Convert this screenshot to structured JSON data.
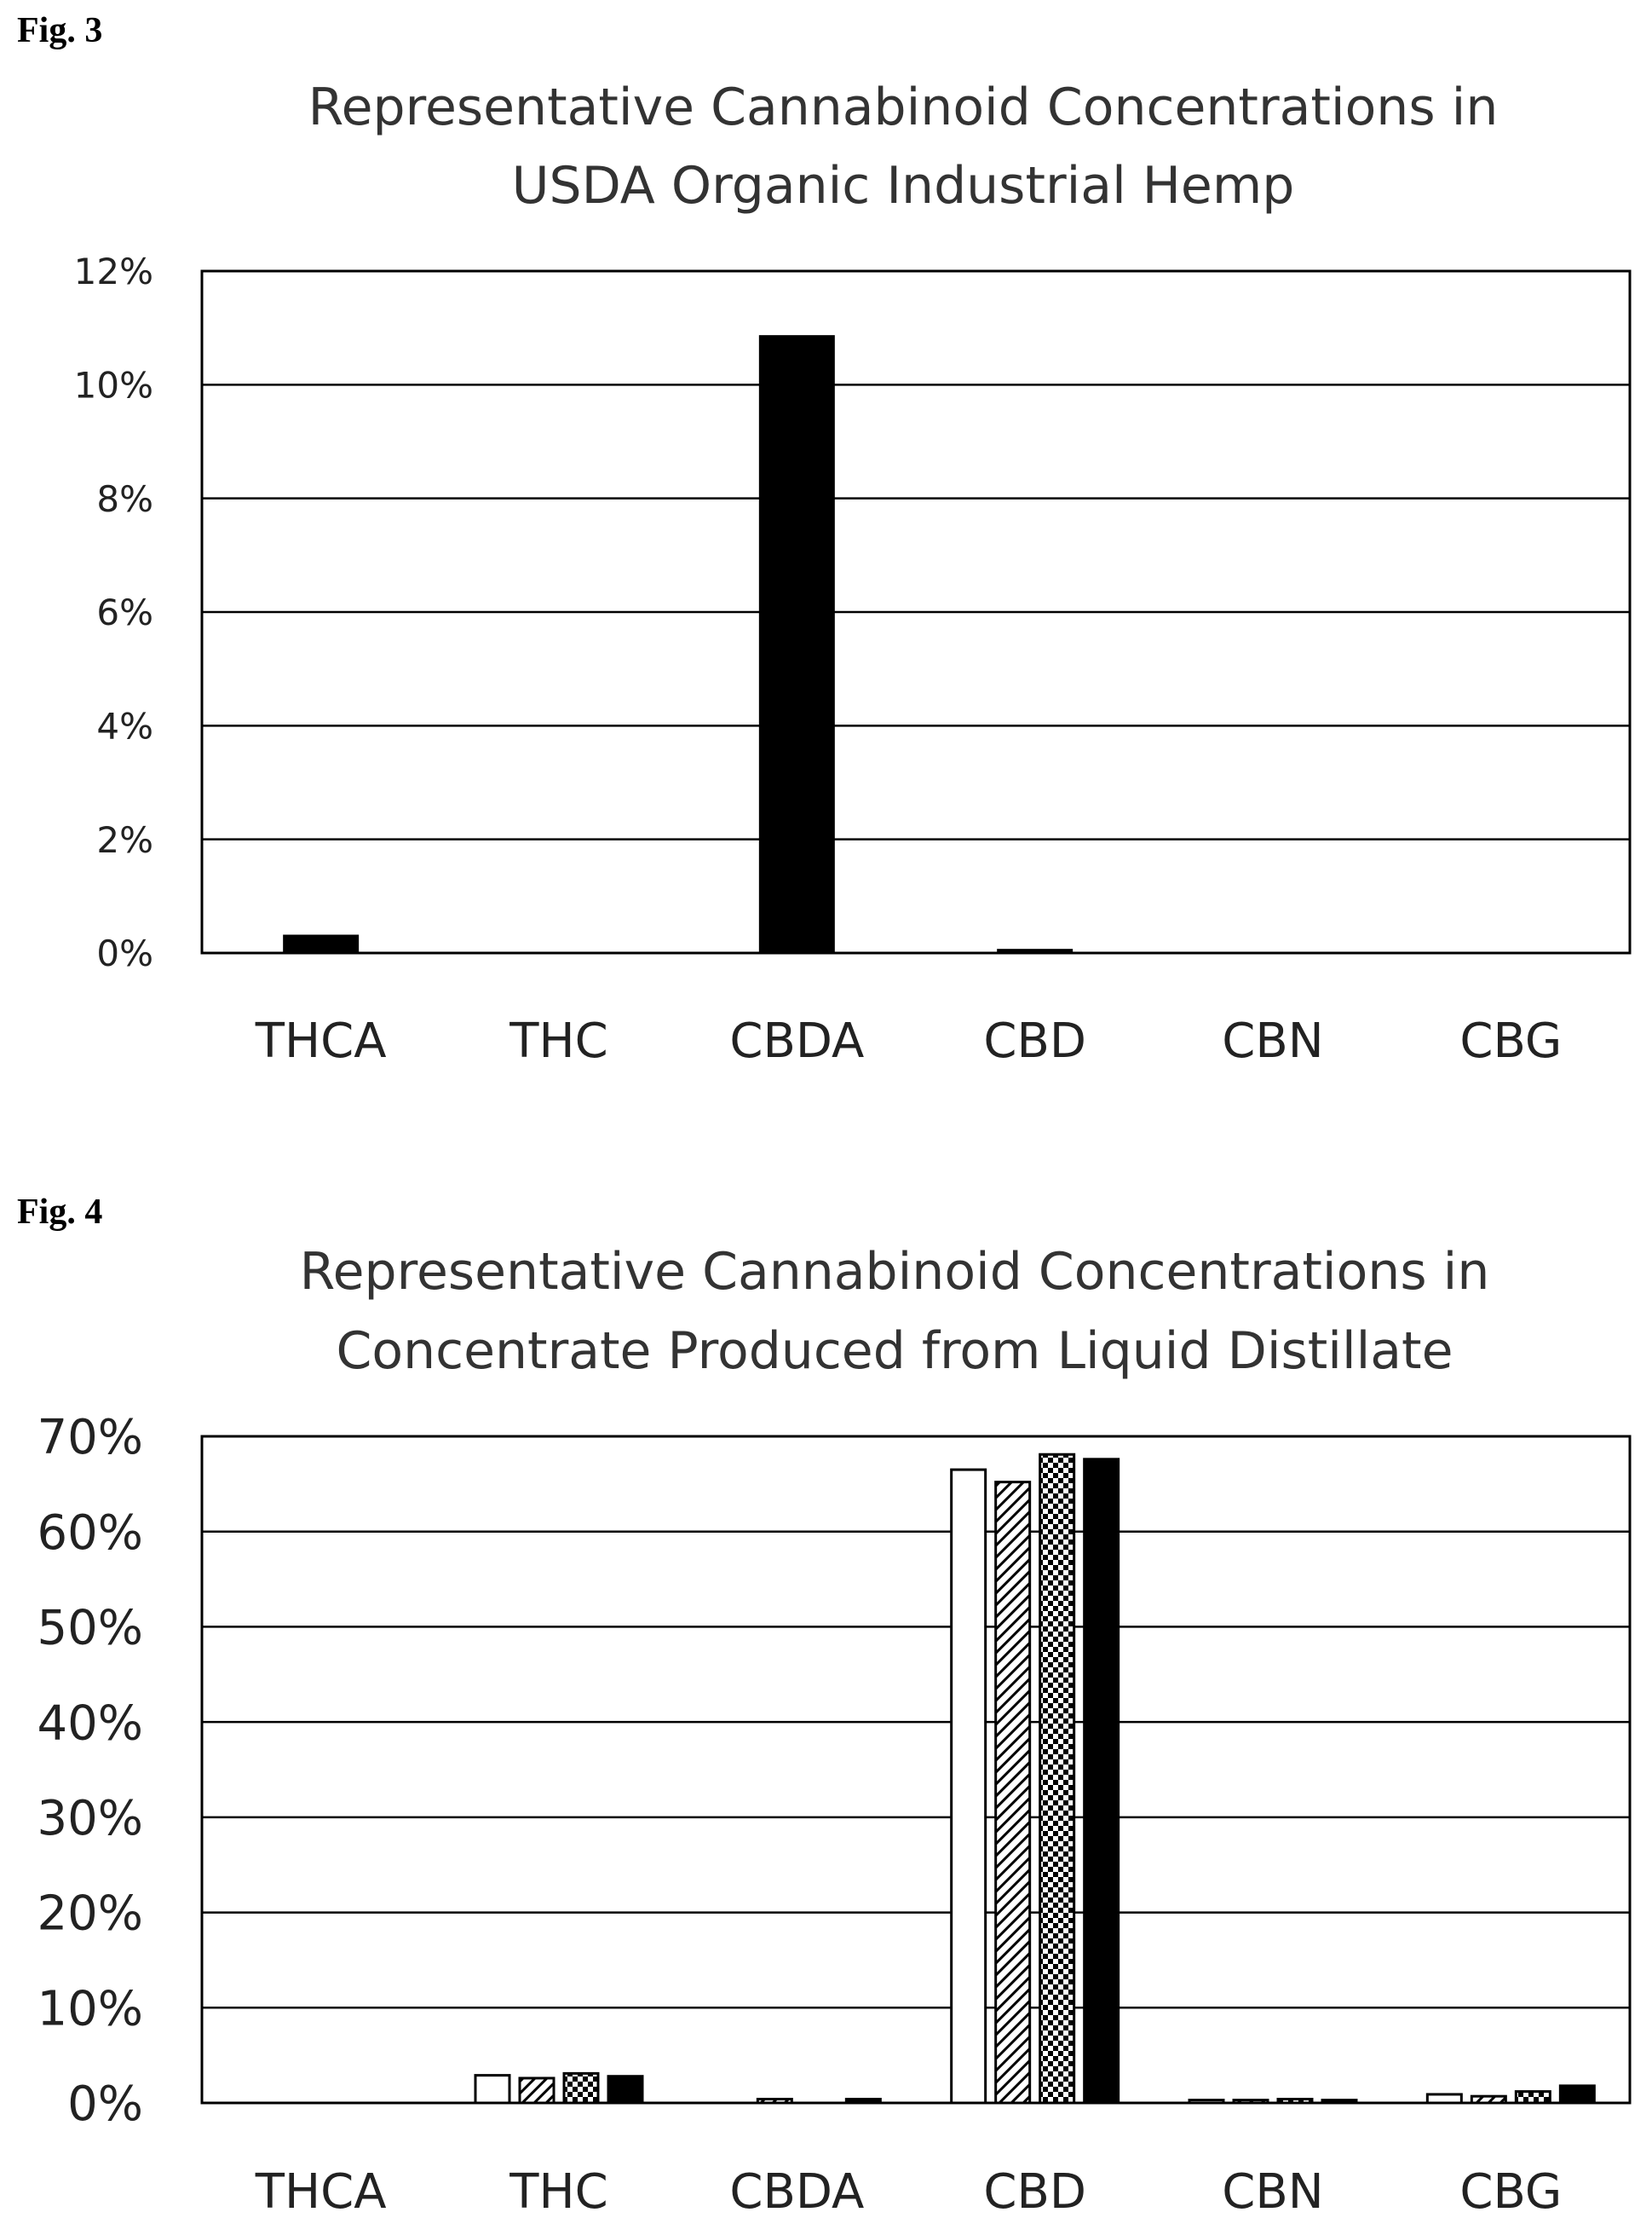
{
  "figures": {
    "fig3": {
      "label": "Fig. 3"
    },
    "fig4": {
      "label": "Fig. 4"
    }
  },
  "chart_data": [
    {
      "type": "bar",
      "title": "Representative Cannabinoid Concentrations in USDA Organic Industrial Hemp",
      "title_lines": [
        "Representative Cannabinoid Concentrations in",
        "USDA Organic Industrial Hemp"
      ],
      "categories": [
        "THCA",
        "THC",
        "CBDA",
        "CBD",
        "CBN",
        "CBG"
      ],
      "series": [
        {
          "values": [
            0.3,
            0.0,
            10.85,
            0.05,
            0.0,
            0.0
          ],
          "fill": "solid"
        }
      ],
      "ylim": [
        0,
        12
      ],
      "yticks": [
        0,
        2,
        4,
        6,
        8,
        10,
        12
      ],
      "ytick_labels": [
        "0%",
        "2%",
        "4%",
        "6%",
        "8%",
        "10%",
        "12%"
      ],
      "unit": "%",
      "grid": true,
      "xlabel": "",
      "ylabel": ""
    },
    {
      "type": "bar",
      "title": "Representative Cannabinoid Concentrations in Concentrate Produced from Liquid Distillate",
      "title_lines": [
        "Representative Cannabinoid Concentrations in",
        "Concentrate Produced from Liquid Distillate"
      ],
      "categories": [
        "THCA",
        "THC",
        "CBDA",
        "CBD",
        "CBN",
        "CBG"
      ],
      "series": [
        {
          "values": [
            0.0,
            2.9,
            0.0,
            66.5,
            0.3,
            0.9
          ],
          "fill": "white"
        },
        {
          "values": [
            0.0,
            2.6,
            0.4,
            65.2,
            0.3,
            0.7
          ],
          "fill": "diagonal-hatch"
        },
        {
          "values": [
            0.0,
            3.1,
            0.0,
            68.1,
            0.4,
            1.2
          ],
          "fill": "checker"
        },
        {
          "values": [
            0.0,
            2.8,
            0.4,
            67.6,
            0.3,
            1.8
          ],
          "fill": "solid"
        }
      ],
      "ylim": [
        0,
        70
      ],
      "yticks": [
        0,
        10,
        20,
        30,
        40,
        50,
        60,
        70
      ],
      "ytick_labels": [
        "0%",
        "10%",
        "20%",
        "30%",
        "40%",
        "50%",
        "60%",
        "70%"
      ],
      "unit": "%",
      "grid": true,
      "xlabel": "",
      "ylabel": ""
    }
  ]
}
